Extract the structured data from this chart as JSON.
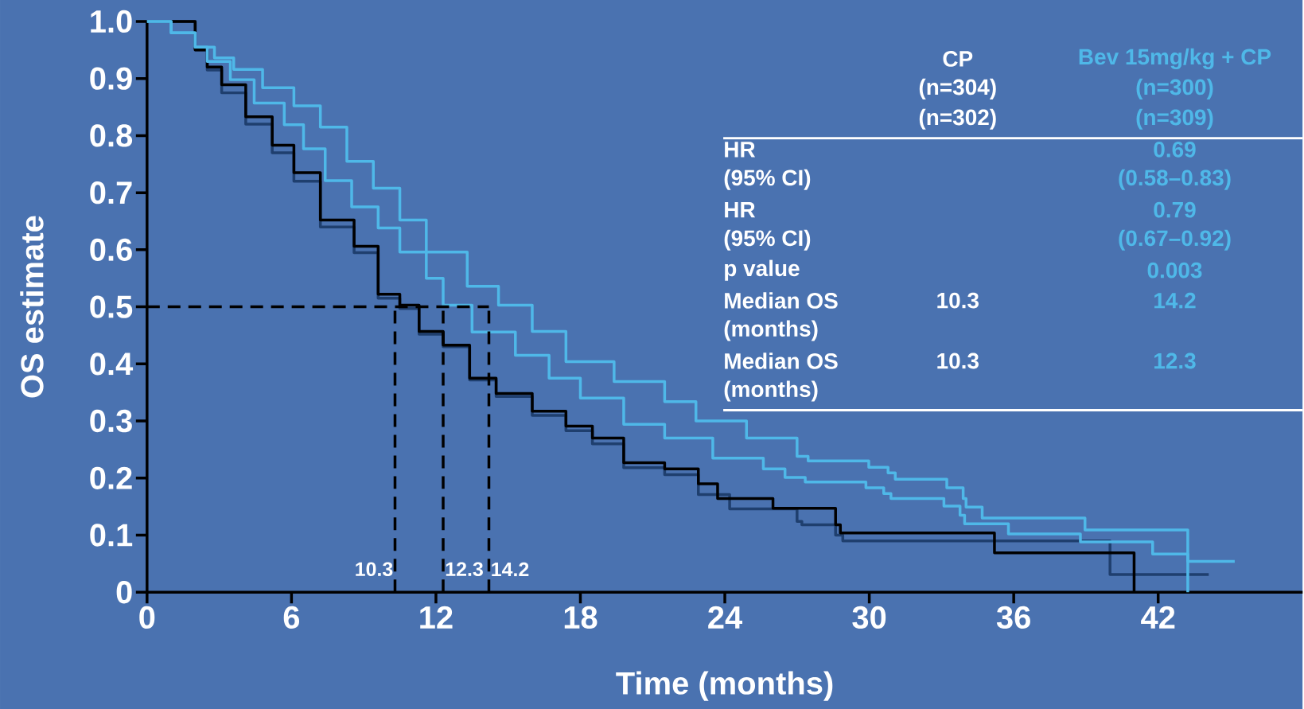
{
  "chart_data": {
    "type": "step",
    "xlabel": "Time (months)",
    "ylabel": "OS estimate",
    "xlim": [
      0,
      48
    ],
    "ylim": [
      0,
      1
    ],
    "xticks": [
      0,
      6,
      12,
      18,
      24,
      30,
      36,
      42
    ],
    "yticks": [
      0,
      0.1,
      0.2,
      0.3,
      0.4,
      0.5,
      0.6,
      0.7,
      0.8,
      0.9,
      {
        "value": 1,
        "label": "1.0"
      }
    ],
    "series": [
      {
        "color": "#1f3f6e",
        "x": [
          0,
          1,
          2,
          2.5,
          3.1,
          4.1,
          5.2,
          6.1,
          7.2,
          8.6,
          9.6,
          10.5,
          11.3,
          12.3,
          13.4,
          14.5,
          16.0,
          17.4,
          18.5,
          19.8,
          21.5,
          22.9,
          24.2,
          27.0,
          27.2,
          28.6,
          28.9,
          40.0,
          44.1
        ],
        "values": [
          1,
          null,
          0.95,
          0.915,
          0.875,
          0.82,
          0.77,
          0.72,
          0.64,
          0.595,
          0.515,
          0.497,
          0.452,
          0.43,
          0.372,
          0.343,
          0.31,
          0.283,
          0.26,
          0.218,
          0.206,
          0.171,
          0.146,
          0.124,
          0.118,
          0.1,
          0.09,
          0.031,
          0.031
        ]
      },
      {
        "color": "#000000",
        "x": [
          0,
          1,
          2,
          2.5,
          3.1,
          4.1,
          5.2,
          6.1,
          7.2,
          8.6,
          9.6,
          10.5,
          11.3,
          12.3,
          13.4,
          14.5,
          16.0,
          17.4,
          18.5,
          19.8,
          21.5,
          22.9,
          23.7,
          26.0,
          28.6,
          28.8,
          35.2,
          41.0
        ],
        "values": [
          1,
          null,
          0.95,
          0.92,
          0.889,
          0.833,
          0.783,
          0.735,
          0.652,
          0.606,
          0.522,
          0.503,
          0.457,
          0.433,
          0.375,
          0.348,
          0.317,
          0.291,
          0.27,
          0.227,
          0.216,
          0.19,
          0.164,
          0.147,
          0.118,
          0.104,
          0.069,
          0
        ]
      },
      {
        "color": "#4fb8e8",
        "x": [
          0,
          1,
          2,
          2.8,
          3.6,
          4.8,
          6.1,
          7.2,
          8.3,
          9.4,
          10.5,
          11.6,
          13.3,
          14.6,
          16.0,
          17.4,
          19.4,
          21.5,
          22.8,
          24.9,
          27.0,
          27.46,
          29.98,
          30.78,
          31.08,
          33.22,
          33.9,
          34.02,
          34.69,
          38.96,
          43.23
        ],
        "values": [
          1,
          0.98,
          0.955,
          0.936,
          0.916,
          0.884,
          0.852,
          0.815,
          0.755,
          0.708,
          0.652,
          0.596,
          0.536,
          0.503,
          0.457,
          0.404,
          0.369,
          0.334,
          0.3,
          0.27,
          0.238,
          0.23,
          0.219,
          0.209,
          0.198,
          0.183,
          0.164,
          0.149,
          0.13,
          0.109,
          0
        ]
      },
      {
        "color": "#4fb8e8",
        "x": [
          0,
          1,
          2,
          2.5,
          3.46,
          4.45,
          5.7,
          6.5,
          7.4,
          8.5,
          9.6,
          10.5,
          11.6,
          12.3,
          13.5,
          15.3,
          16.7,
          18.0,
          19.8,
          21.5,
          23.5,
          25.6,
          26.5,
          27.34,
          29.86,
          30.6,
          30.9,
          33.1,
          33.77,
          33.96,
          35.78,
          38.77,
          41.77,
          43.23,
          45.18
        ],
        "values": [
          1,
          0.98,
          0.955,
          0.93,
          0.898,
          0.857,
          0.819,
          0.777,
          0.721,
          0.675,
          0.638,
          0.596,
          0.55,
          0.503,
          0.456,
          0.415,
          0.375,
          0.34,
          0.294,
          0.27,
          0.235,
          0.216,
          0.201,
          0.193,
          0.183,
          0.173,
          0.164,
          0.151,
          0.135,
          0.12,
          0.102,
          0.088,
          0.067,
          0.054,
          0.054
        ]
      }
    ],
    "ref_lines": [
      {
        "axis": "y",
        "value": 0.5,
        "line_style": "dashed",
        "color": "#000000"
      },
      {
        "axis": "x",
        "value": 10.3,
        "label": "10.3",
        "line_style": "dashed",
        "color": "#000000"
      },
      {
        "axis": "x",
        "value": 12.3,
        "label": "12.3",
        "line_style": "dashed",
        "color": "#000000"
      },
      {
        "axis": "x",
        "value": 14.2,
        "label": "14.2",
        "line_style": "dashed",
        "color": "#000000"
      }
    ],
    "annotations": [
      "CP",
      "(n=304)",
      "(n=302)",
      "Bev 15mg/kg + CP",
      "(n=300)",
      "(n=309)",
      "HR",
      "(95% CI)",
      "0.69",
      "(0.58–0.83)",
      "Median OS",
      "(months)",
      "10.3",
      "14.2",
      "HR",
      "(95% CI)",
      "0.79",
      "(0.67–0.92)",
      "p value",
      "0.003",
      "Median OS",
      "(months)",
      "10.3",
      "12.3"
    ]
  }
}
